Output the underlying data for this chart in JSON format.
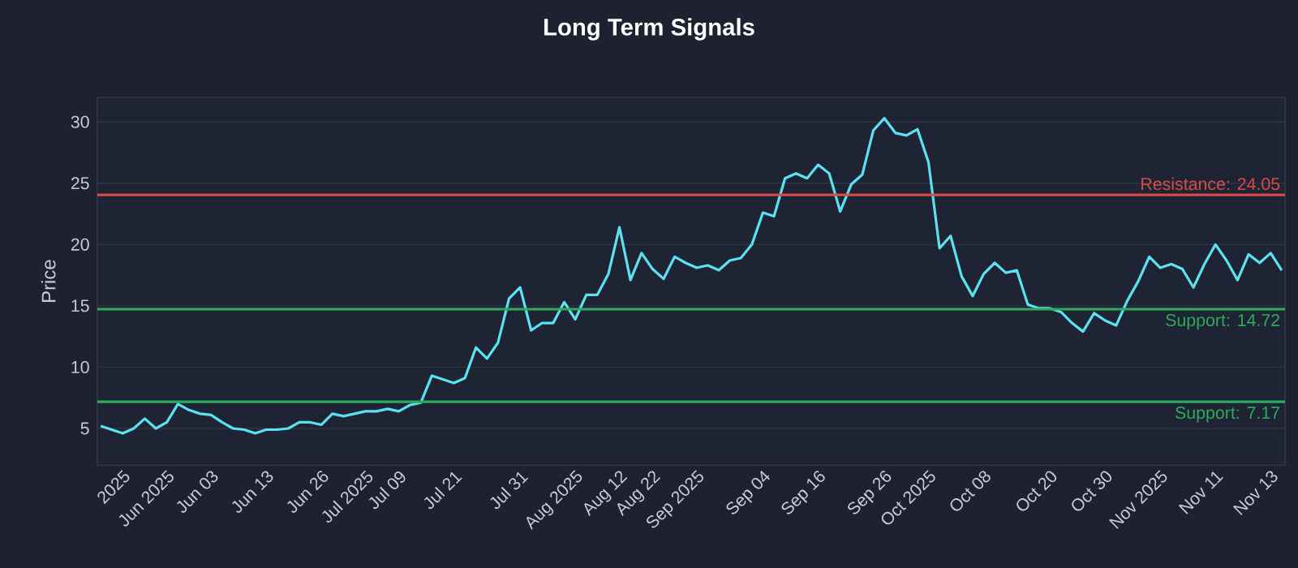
{
  "chart_data": {
    "type": "line",
    "title": "Long Term Signals",
    "ylabel": "Price",
    "categories": [
      null,
      null,
      "2025",
      null,
      null,
      null,
      "Jun 2025",
      null,
      null,
      null,
      "Jun 03",
      null,
      null,
      null,
      null,
      "Jun 13",
      null,
      null,
      null,
      null,
      "Jun 26",
      null,
      null,
      null,
      "Jul 2025",
      null,
      null,
      "Jul 09",
      null,
      null,
      null,
      null,
      "Jul 21",
      null,
      null,
      null,
      null,
      null,
      "Jul 31",
      null,
      null,
      null,
      null,
      "Aug 2025",
      null,
      null,
      null,
      "Aug 12",
      null,
      null,
      "Aug 22",
      null,
      null,
      null,
      "Sep 2025",
      null,
      null,
      null,
      null,
      null,
      "Sep 04",
      null,
      null,
      null,
      null,
      "Sep 16",
      null,
      null,
      null,
      null,
      null,
      "Sep 26",
      null,
      null,
      null,
      "Oct 2025",
      null,
      null,
      null,
      null,
      "Oct 08",
      null,
      null,
      null,
      null,
      null,
      "Oct 20",
      null,
      null,
      null,
      null,
      "Oct 30",
      null,
      null,
      null,
      null,
      "Nov 2025",
      null,
      null,
      null,
      null,
      "Nov 11",
      null,
      null,
      null,
      null,
      "Nov 13",
      null
    ],
    "series": [
      {
        "color": "#5ce1f0",
        "values": [
          5.2,
          4.9,
          4.6,
          5.0,
          5.8,
          5.0,
          5.5,
          7.0,
          6.5,
          6.2,
          6.1,
          5.5,
          5.0,
          4.9,
          4.6,
          4.9,
          4.9,
          5.0,
          5.5,
          5.5,
          5.3,
          6.2,
          6.0,
          6.2,
          6.4,
          6.4,
          6.6,
          6.4,
          6.9,
          7.1,
          9.3,
          9.0,
          8.7,
          9.1,
          11.6,
          10.7,
          12.0,
          15.6,
          16.5,
          13.0,
          13.6,
          13.6,
          15.3,
          13.9,
          15.9,
          15.9,
          17.6,
          21.4,
          17.1,
          19.3,
          18.0,
          17.2,
          19.0,
          18.5,
          18.1,
          18.3,
          17.9,
          18.7,
          18.9,
          20.0,
          22.6,
          22.3,
          25.4,
          25.8,
          25.4,
          26.5,
          25.8,
          22.7,
          24.9,
          25.7,
          29.3,
          30.3,
          29.1,
          28.9,
          29.4,
          26.7,
          19.7,
          20.7,
          17.4,
          15.8,
          17.6,
          18.5,
          17.7,
          17.9,
          15.1,
          14.8,
          14.8,
          14.5,
          13.6,
          12.9,
          14.4,
          13.8,
          13.4,
          15.4,
          17.0,
          19.0,
          18.1,
          18.4,
          18.0,
          16.5,
          18.4,
          20.0,
          18.7,
          17.1,
          19.2,
          18.5,
          19.3,
          17.9
        ]
      }
    ],
    "ylim": [
      2,
      32
    ],
    "yticks": [
      5,
      10,
      15,
      20,
      25,
      30
    ],
    "grid": "y",
    "ref_lines": [
      {
        "axis": "y",
        "value": 24.05,
        "label": "Resistance: 24.05",
        "color": "#d94a4a"
      },
      {
        "axis": "y",
        "value": 14.72,
        "label": "Support: 14.72",
        "color": "#2eab5a"
      },
      {
        "axis": "y",
        "value": 7.17,
        "label": "Support: 7.17",
        "color": "#2eab5a"
      }
    ]
  }
}
